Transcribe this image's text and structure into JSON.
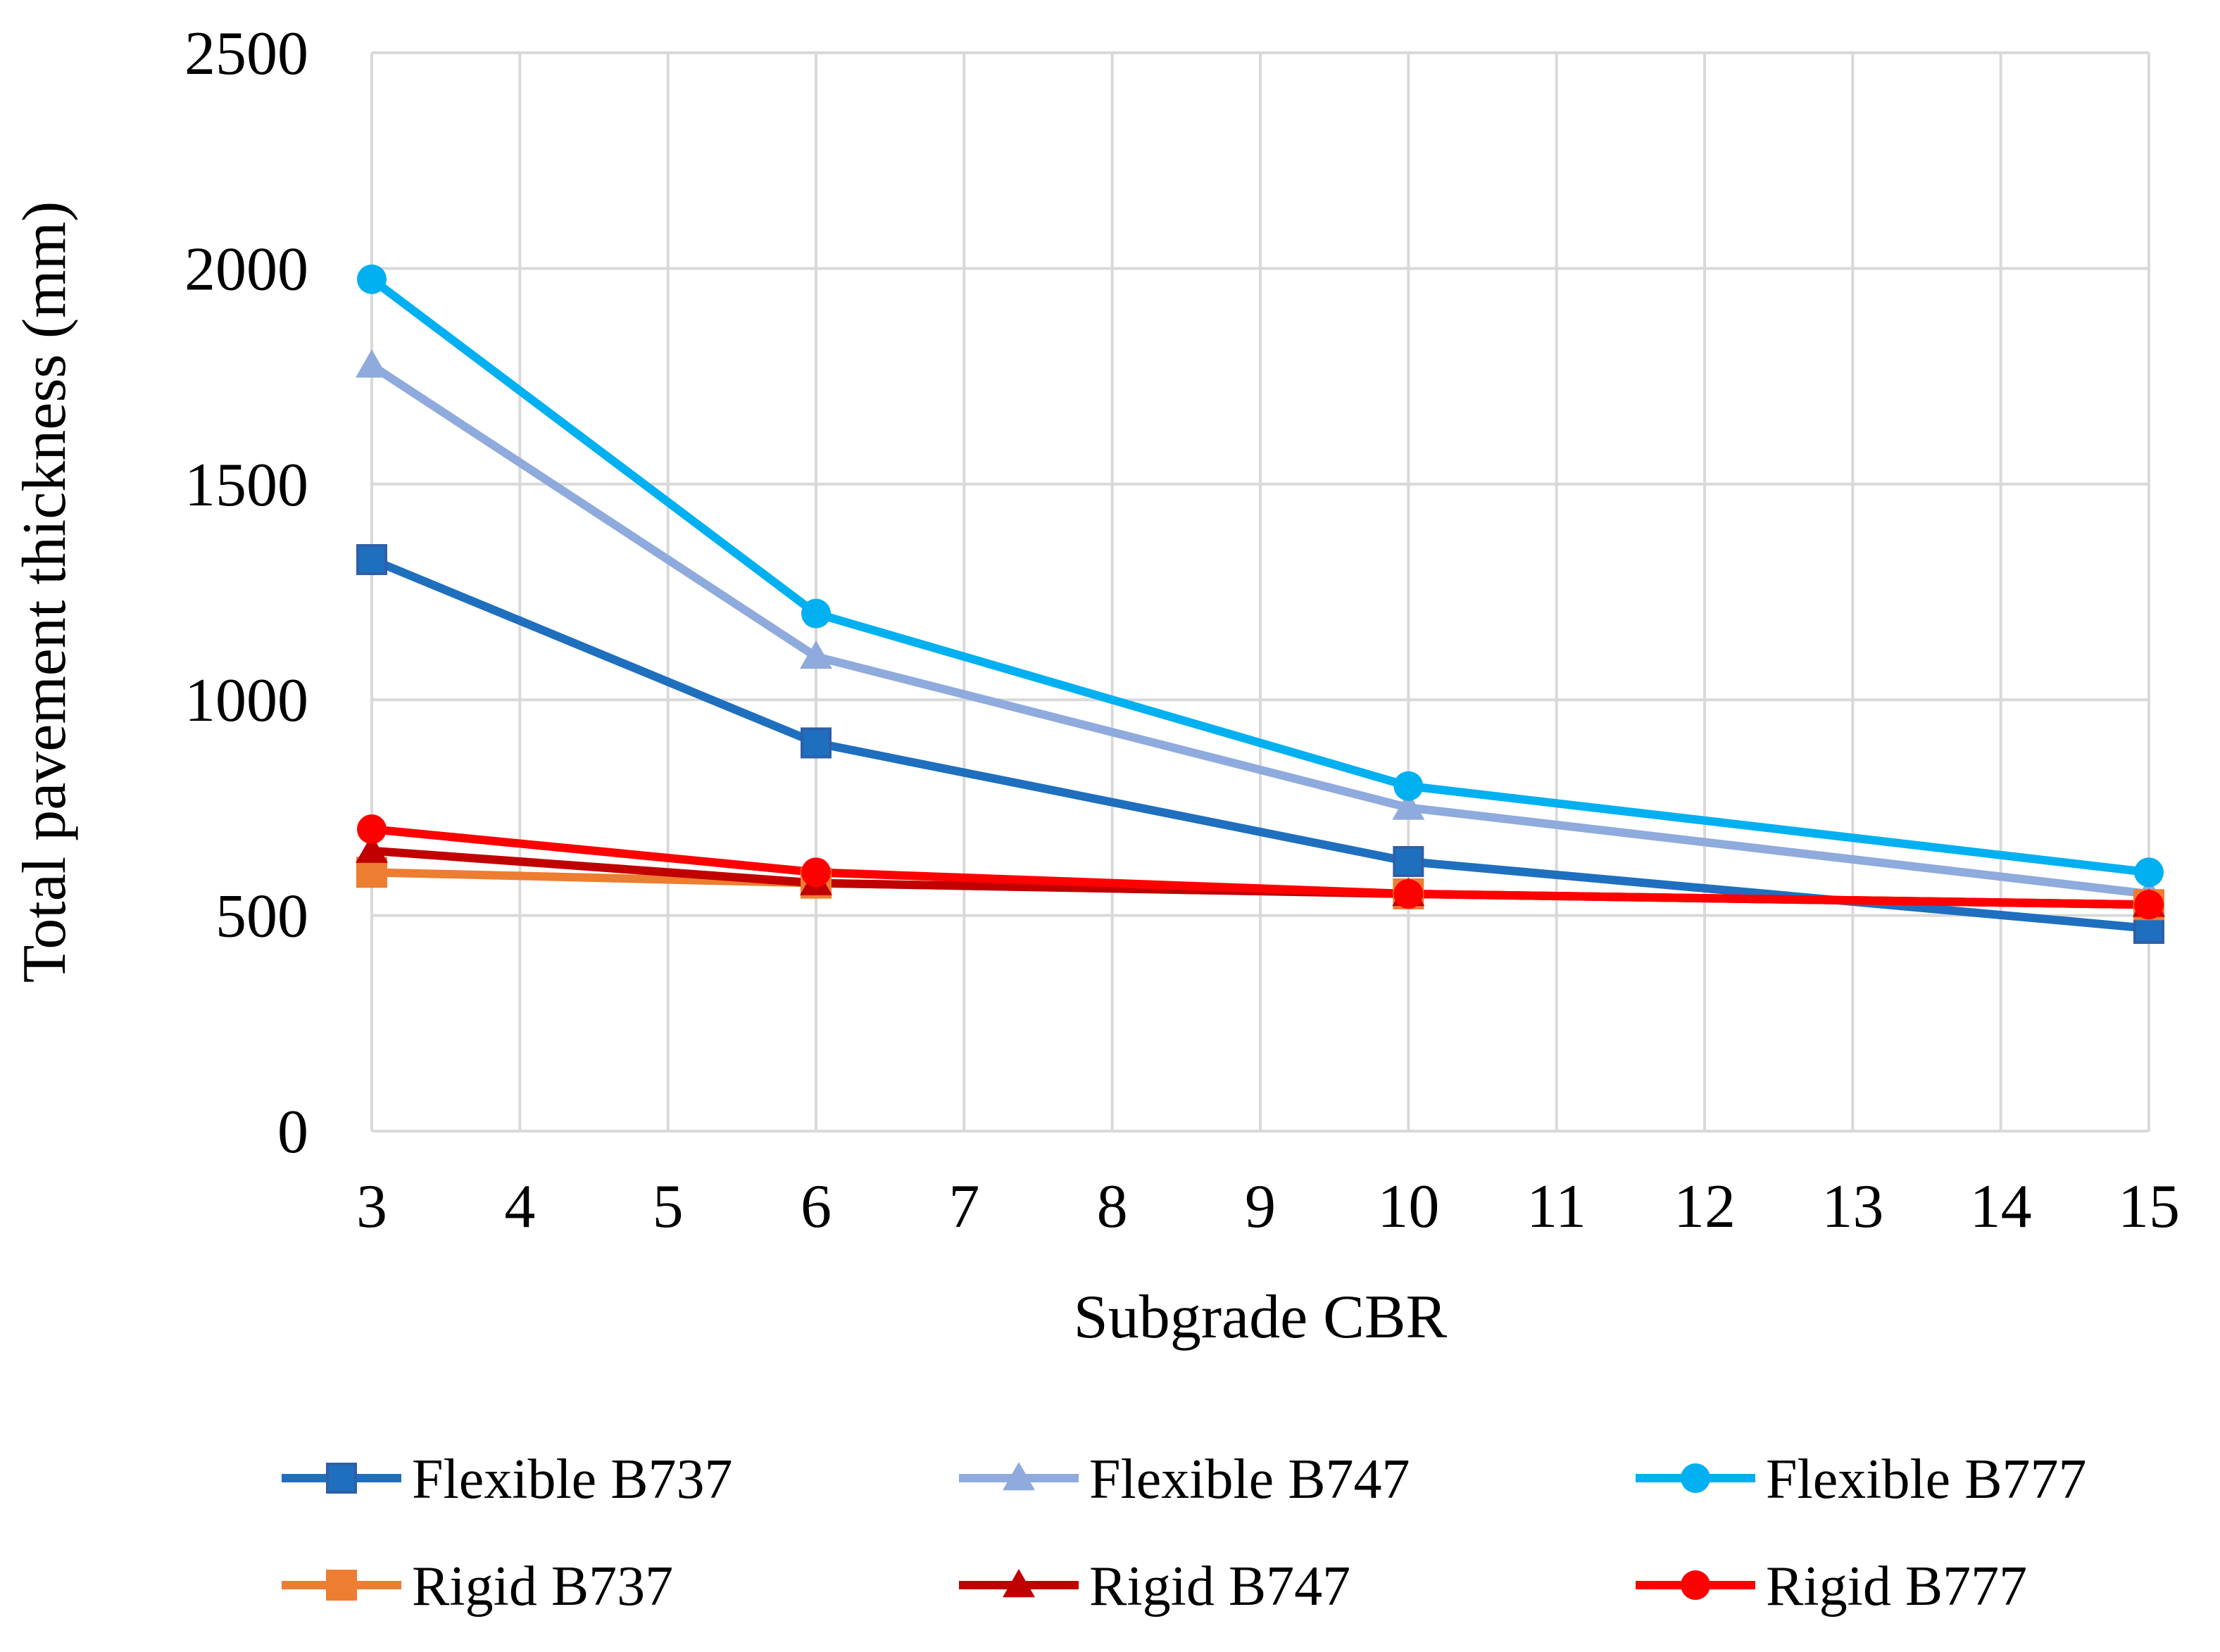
{
  "chart_data": {
    "type": "line",
    "title": "",
    "xlabel": "Subgrade CBR",
    "ylabel": "Total pavement thickness (mm)",
    "xlim": [
      3,
      15
    ],
    "ylim": [
      0,
      2500
    ],
    "x_ticks": [
      3,
      4,
      5,
      6,
      7,
      8,
      9,
      10,
      11,
      12,
      13,
      14,
      15
    ],
    "y_ticks": [
      0,
      500,
      1000,
      1500,
      2000,
      2500
    ],
    "grid": true,
    "legend_position": "bottom",
    "x": [
      3,
      6,
      10,
      15
    ],
    "series": [
      {
        "name": "Flexible B737",
        "color": "#1f6fbf",
        "marker": "square",
        "values": [
          1325,
          900,
          625,
          470
        ]
      },
      {
        "name": "Flexible B747",
        "color": "#8faadc",
        "marker": "triangle",
        "values": [
          1775,
          1100,
          750,
          550
        ]
      },
      {
        "name": "Flexible B777",
        "color": "#00b0f0",
        "marker": "circle",
        "values": [
          1975,
          1200,
          800,
          600
        ]
      },
      {
        "name": "Rigid B737",
        "color": "#ed7d31",
        "marker": "square",
        "values": [
          600,
          575,
          550,
          525
        ]
      },
      {
        "name": "Rigid B747",
        "color": "#c00000",
        "marker": "triangle",
        "values": [
          650,
          575,
          550,
          525
        ]
      },
      {
        "name": "Rigid B777",
        "color": "#ff0000",
        "marker": "circle",
        "values": [
          700,
          600,
          550,
          525
        ]
      }
    ]
  }
}
